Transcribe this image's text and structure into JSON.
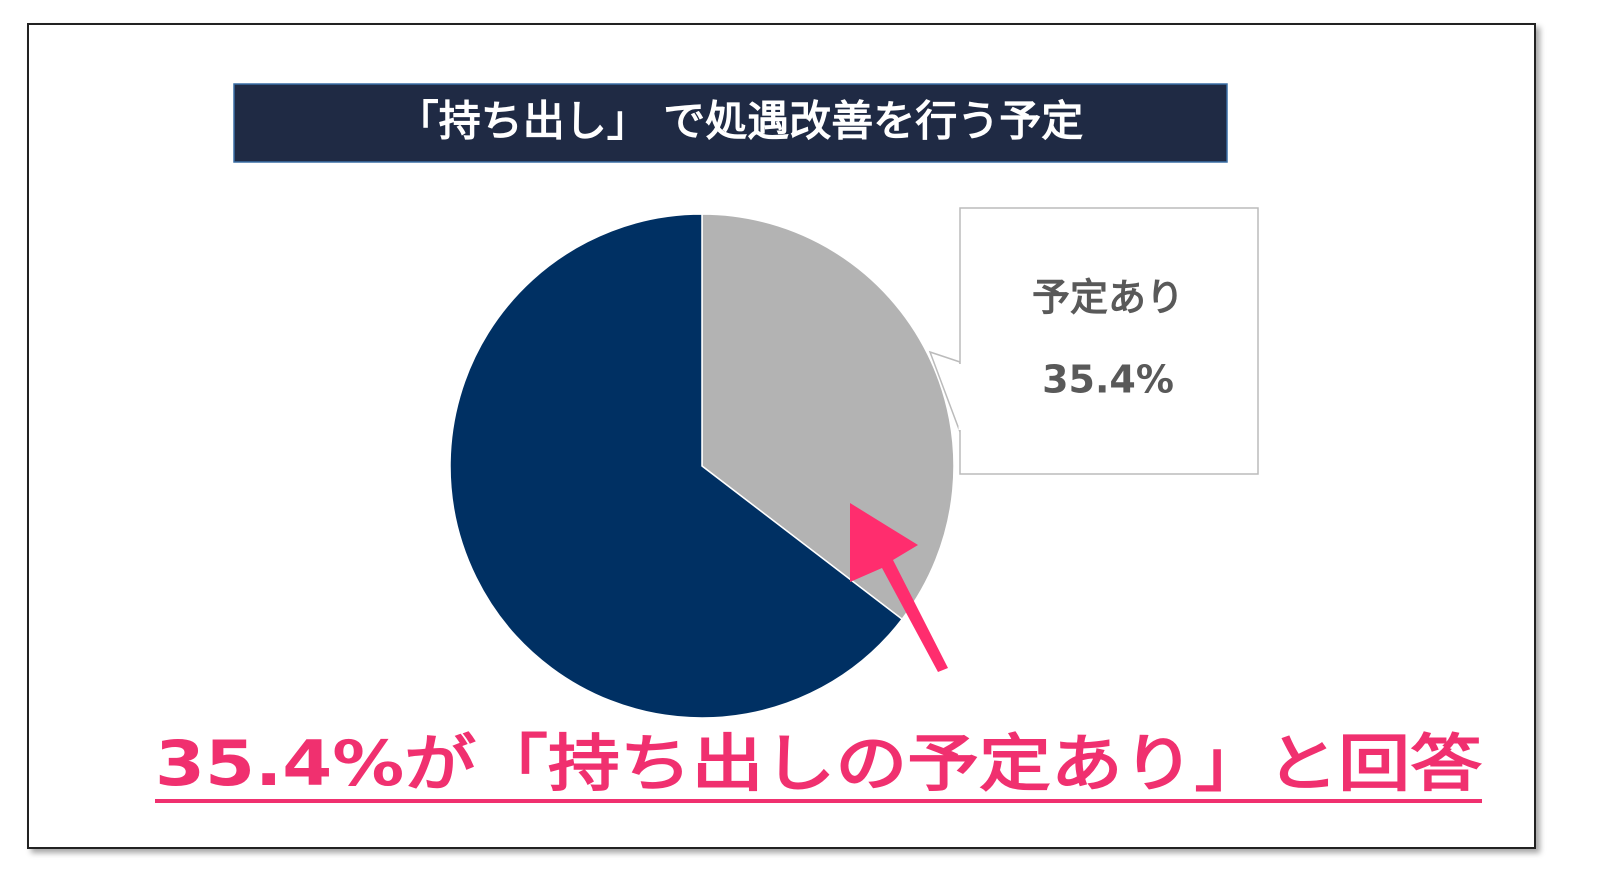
{
  "chart_data": {
    "type": "pie",
    "title": "「持ち出し」 で処遇改善を行う予定",
    "categories": [
      "予定あり",
      null
    ],
    "values": [
      35.4,
      64.6
    ],
    "value_labels": [
      "35.4%",
      null
    ],
    "colors": [
      "#b3b3b3",
      "#003063"
    ],
    "annotation": "35.4%が「持ち出しの予定あり」と回答"
  }
}
